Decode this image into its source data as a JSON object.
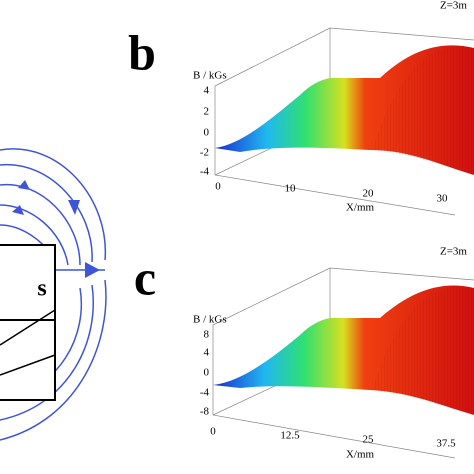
{
  "left_panel": {
    "magnet_label": "s"
  },
  "panel_b": {
    "label": "b",
    "corner_title": "Z=3m",
    "z_axis_label": "B / kGs",
    "z_ticks": [
      "4",
      "2",
      "0",
      "-2",
      "-4"
    ],
    "x_ticks": [
      "0",
      "10",
      "20",
      "30"
    ],
    "x_axis_label": "X/mm"
  },
  "panel_c": {
    "label": "c",
    "corner_title": "Z=3m",
    "z_axis_label": "B / kGs",
    "z_ticks": [
      "8",
      "4",
      "0",
      "-4",
      "-8"
    ],
    "x_ticks": [
      "0",
      "12.5",
      "25",
      "37.5"
    ],
    "x_axis_label": "X/mm"
  }
}
